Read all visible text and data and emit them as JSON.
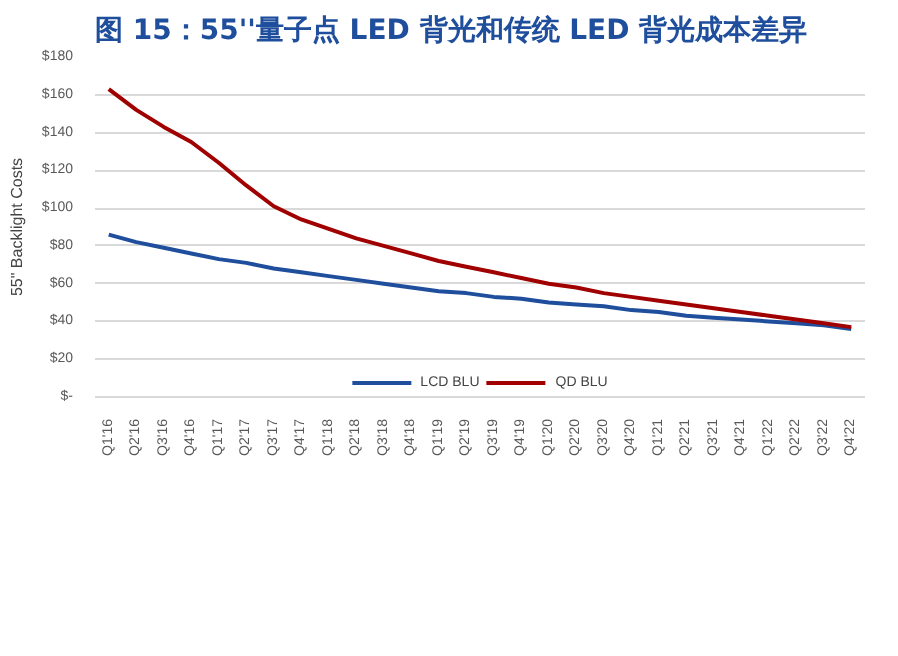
{
  "chart_data": {
    "type": "line",
    "title": "图 15：55''量子点 LED 背光和传统 LED 背光成本差异",
    "ylabel": "55\" Backlight Costs",
    "categories": [
      "Q1'16",
      "Q2'16",
      "Q3'16",
      "Q4'16",
      "Q1'17",
      "Q2'17",
      "Q3'17",
      "Q4'17",
      "Q1'18",
      "Q2'18",
      "Q3'18",
      "Q4'18",
      "Q1'19",
      "Q2'19",
      "Q3'19",
      "Q4'19",
      "Q1'20",
      "Q2'20",
      "Q3'20",
      "Q4'20",
      "Q1'21",
      "Q2'21",
      "Q3'21",
      "Q4'21",
      "Q1'22",
      "Q2'22",
      "Q3'22",
      "Q4'22"
    ],
    "series": [
      {
        "name": "LCD BLU",
        "color": "#1f4e9c",
        "values": [
          86,
          82,
          79,
          76,
          73,
          71,
          68,
          66,
          64,
          62,
          60,
          58,
          56,
          55,
          53,
          52,
          50,
          49,
          48,
          46,
          45,
          43,
          42,
          41,
          40,
          39,
          38,
          36
        ]
      },
      {
        "name": "QD BLU",
        "color": "#a00000",
        "values": [
          163,
          152,
          143,
          135,
          124,
          112,
          101,
          94,
          89,
          84,
          80,
          76,
          72,
          69,
          66,
          63,
          60,
          58,
          55,
          53,
          51,
          49,
          47,
          45,
          43,
          41,
          39,
          37
        ]
      }
    ],
    "ylim": [
      0,
      180
    ],
    "yticks": [
      {
        "value": 0,
        "label": "$-"
      },
      {
        "value": 20,
        "label": "$20"
      },
      {
        "value": 40,
        "label": "$40"
      },
      {
        "value": 60,
        "label": "$60"
      },
      {
        "value": 80,
        "label": "$80"
      },
      {
        "value": 100,
        "label": "$100"
      },
      {
        "value": 120,
        "label": "$120"
      },
      {
        "value": 140,
        "label": "$140"
      },
      {
        "value": 160,
        "label": "$160"
      },
      {
        "value": 180,
        "label": "$180"
      }
    ],
    "grid": "y",
    "legend": "bottom",
    "marker": "none",
    "line_style": "solid"
  }
}
